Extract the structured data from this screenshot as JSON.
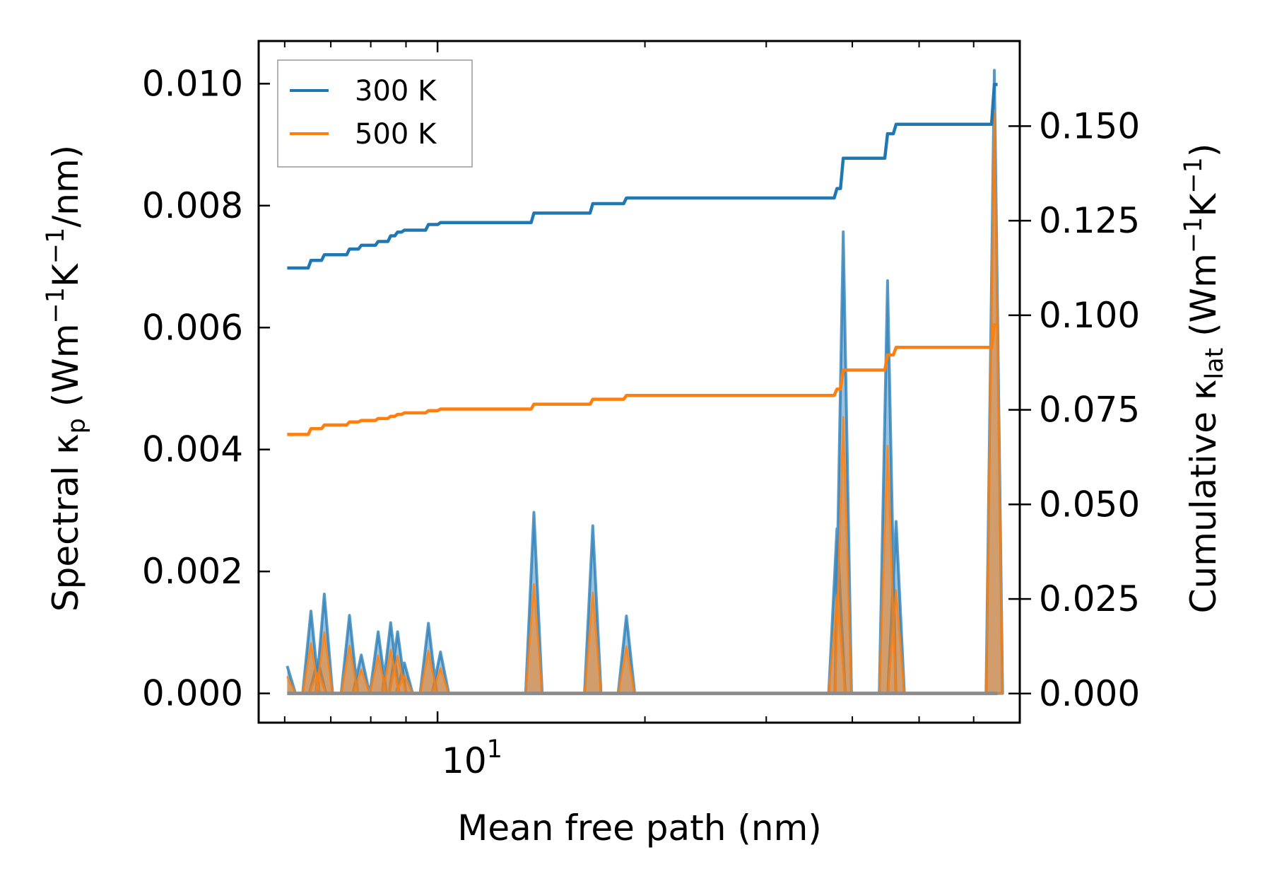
{
  "chart_data": {
    "type": "line",
    "xlabel": "Mean free path (nm)",
    "xscale": "log",
    "xlim": [
      5.5,
      70
    ],
    "x_tick_major": [
      10
    ],
    "x_tick_major_labels": [
      "10",
      "1"
    ],
    "x_tick_minor": [
      6,
      7,
      8,
      9,
      20,
      30,
      40,
      50,
      60
    ],
    "ylabel_left": {
      "main": "Spectral κ",
      "sub": "p",
      "unit_open": " (Wm",
      "sup1": "−1",
      "mid": "K",
      "sup2": "−1",
      "unit_close": "/nm)"
    },
    "ylabel_right": {
      "main": "Cumulative κ",
      "sub": "lat",
      "unit_open": " (Wm",
      "sup1": "−1",
      "mid": "K",
      "sup2": "−1",
      "unit_close": ")"
    },
    "ylim_left": [
      -0.00048,
      0.0107
    ],
    "ylim_right": [
      -0.0077,
      0.1725
    ],
    "yticks_left": [
      "0.000",
      "0.002",
      "0.004",
      "0.006",
      "0.008",
      "0.010"
    ],
    "yticks_right": [
      "0.000",
      "0.025",
      "0.050",
      "0.075",
      "0.100",
      "0.125",
      "0.150"
    ],
    "legend": {
      "location": "upper-left",
      "entries": [
        {
          "label": "300 K",
          "color": "#1f77b4"
        },
        {
          "label": "500 K",
          "color": "#ff7f0e"
        }
      ]
    },
    "spectral_peaks": [
      {
        "x": 6.05,
        "v300": 0.00045,
        "v500": 0.00028
      },
      {
        "x": 6.55,
        "v300": 0.00135,
        "v500": 0.00082
      },
      {
        "x": 6.7,
        "v300": 0.00055,
        "v500": 0.00034
      },
      {
        "x": 6.85,
        "v300": 0.00163,
        "v500": 0.001
      },
      {
        "x": 7.45,
        "v300": 0.00128,
        "v500": 0.00078
      },
      {
        "x": 7.75,
        "v300": 0.00063,
        "v500": 0.00039
      },
      {
        "x": 8.2,
        "v300": 0.00101,
        "v500": 0.00062
      },
      {
        "x": 8.55,
        "v300": 0.00116,
        "v500": 0.00071
      },
      {
        "x": 8.75,
        "v300": 0.00101,
        "v500": 0.00062
      },
      {
        "x": 8.95,
        "v300": 0.0005,
        "v500": 0.0003
      },
      {
        "x": 9.7,
        "v300": 0.00115,
        "v500": 0.0007
      },
      {
        "x": 10.1,
        "v300": 0.00068,
        "v500": 0.00041
      },
      {
        "x": 13.8,
        "v300": 0.00297,
        "v500": 0.00179
      },
      {
        "x": 16.8,
        "v300": 0.00275,
        "v500": 0.00165
      },
      {
        "x": 18.8,
        "v300": 0.00127,
        "v500": 0.00077
      },
      {
        "x": 38.0,
        "v300": 0.0027,
        "v500": 0.00162
      },
      {
        "x": 38.8,
        "v300": 0.00757,
        "v500": 0.00453
      },
      {
        "x": 45.0,
        "v300": 0.00677,
        "v500": 0.00406
      },
      {
        "x": 46.3,
        "v300": 0.00282,
        "v500": 0.00169
      },
      {
        "x": 64.3,
        "v300": 0.01022,
        "v500": 0.00956
      }
    ],
    "series": [
      {
        "name": "300 K",
        "color": "#1f77b4",
        "cumulative_x": [
          6.05,
          6.55,
          6.85,
          7.45,
          7.75,
          8.2,
          8.55,
          8.75,
          8.95,
          9.7,
          10.1,
          13.8,
          16.8,
          18.8,
          38.0,
          38.8,
          45.0,
          46.3,
          64.3,
          65.0
        ],
        "cumulative_y": [
          0.1125,
          0.1145,
          0.116,
          0.1175,
          0.1185,
          0.1195,
          0.121,
          0.122,
          0.1225,
          0.124,
          0.1245,
          0.127,
          0.1295,
          0.131,
          0.1335,
          0.1415,
          0.148,
          0.1505,
          0.161,
          0.161
        ]
      },
      {
        "name": "500 K",
        "color": "#ff7f0e",
        "cumulative_x": [
          6.05,
          6.55,
          6.85,
          7.45,
          7.75,
          8.2,
          8.55,
          8.75,
          8.95,
          9.7,
          10.1,
          13.8,
          16.8,
          18.8,
          38.0,
          38.8,
          45.0,
          46.3,
          64.3,
          65.0
        ],
        "cumulative_y": [
          0.0685,
          0.07,
          0.071,
          0.0718,
          0.0722,
          0.0727,
          0.0733,
          0.0738,
          0.0742,
          0.0748,
          0.0752,
          0.0765,
          0.0778,
          0.0788,
          0.0805,
          0.0855,
          0.0895,
          0.0915,
          0.0975,
          0.0975
        ]
      }
    ]
  }
}
